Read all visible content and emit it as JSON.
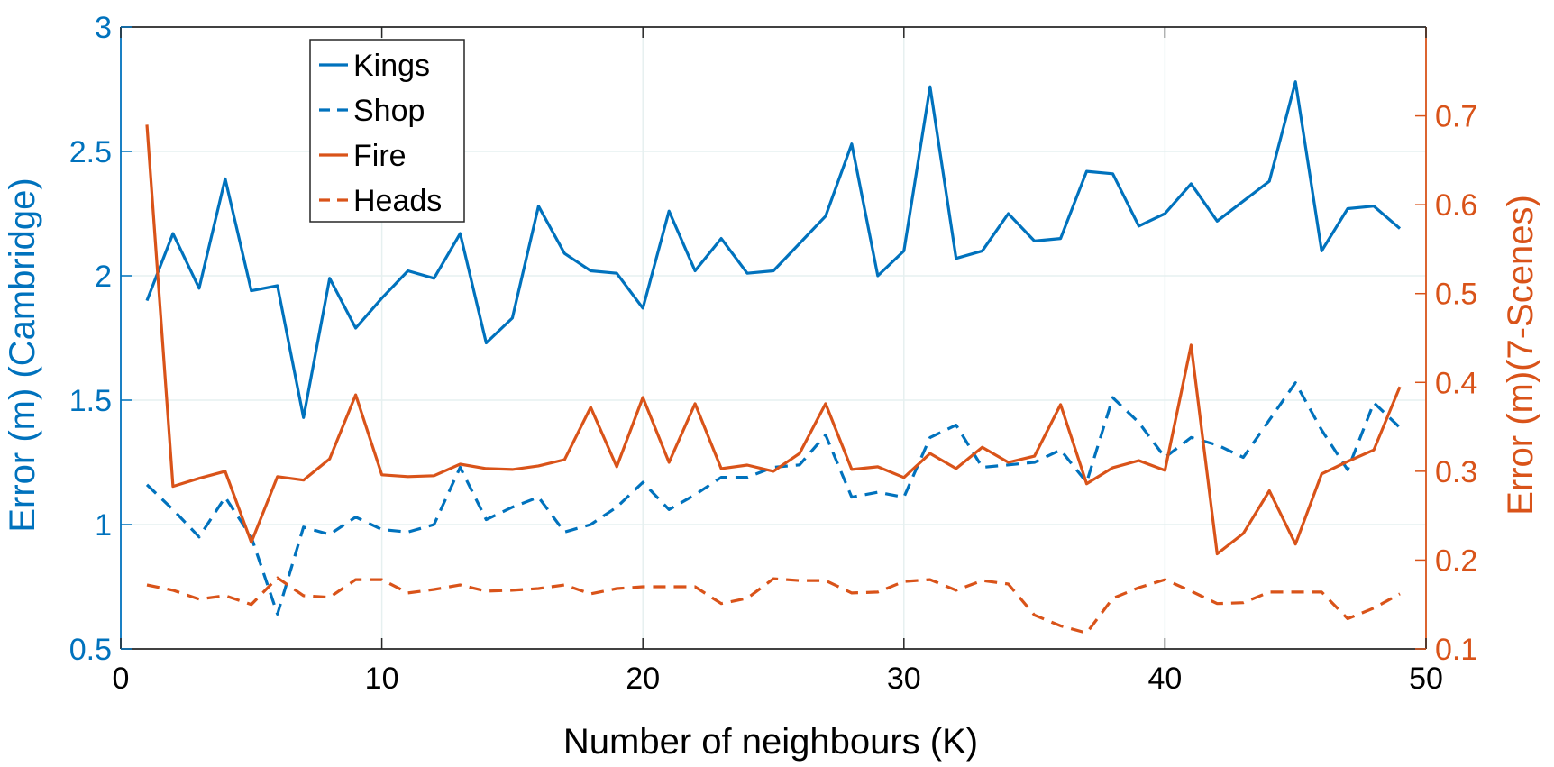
{
  "colors": {
    "left_axis": "#0072BD",
    "right_axis": "#D95319",
    "grid": "#E6F0F0",
    "frame": "#262626"
  },
  "chart_data": {
    "type": "line",
    "xlabel": "Number of neighbours (K)",
    "ylabel_left": "Error (m) (Cambridge)",
    "ylabel_right": "Error (m)(7-Scenes)",
    "xlim": [
      0,
      50
    ],
    "ylim_left": [
      0.5,
      3
    ],
    "ylim_right": [
      0.1,
      0.8
    ],
    "grid": true,
    "legend_location": "top-left",
    "x_ticks": [
      0,
      10,
      20,
      30,
      40,
      50
    ],
    "x_tick_labels": [
      "0",
      "10",
      "20",
      "30",
      "40",
      "50"
    ],
    "y_left_ticks": [
      0.5,
      1,
      1.5,
      2,
      2.5,
      3
    ],
    "y_left_tick_labels": [
      "0.5",
      "1",
      "1.5",
      "2",
      "2.5",
      "3"
    ],
    "y_right_ticks": [
      0.1,
      0.2,
      0.3,
      0.4,
      0.5,
      0.6,
      0.7
    ],
    "y_right_tick_labels": [
      "0.1",
      "0.2",
      "0.3",
      "0.4",
      "0.5",
      "0.6",
      "0.7"
    ],
    "x": [
      1,
      2,
      3,
      4,
      5,
      6,
      7,
      8,
      9,
      10,
      11,
      12,
      13,
      14,
      15,
      16,
      17,
      18,
      19,
      20,
      21,
      22,
      23,
      24,
      25,
      26,
      27,
      28,
      29,
      30,
      31,
      32,
      33,
      34,
      35,
      36,
      37,
      38,
      39,
      40,
      41,
      42,
      43,
      44,
      45,
      46,
      47,
      48,
      49
    ],
    "series": [
      {
        "name": "Kings",
        "axis": "left",
        "style": "solid",
        "color": "#0072BD",
        "values": [
          1.9,
          2.17,
          1.95,
          2.39,
          1.94,
          1.96,
          1.43,
          1.99,
          1.79,
          1.91,
          2.02,
          1.99,
          2.17,
          1.73,
          1.83,
          2.28,
          2.09,
          2.02,
          2.01,
          1.87,
          2.26,
          2.02,
          2.15,
          2.01,
          2.02,
          2.13,
          2.24,
          2.53,
          2.0,
          2.1,
          2.76,
          2.07,
          2.1,
          2.25,
          2.14,
          2.15,
          2.42,
          2.41,
          2.2,
          2.25,
          2.37,
          2.22,
          2.3,
          2.38,
          2.78,
          2.1,
          2.27,
          2.28,
          2.19
        ]
      },
      {
        "name": "Shop",
        "axis": "left",
        "style": "dashed",
        "color": "#0072BD",
        "values": [
          1.16,
          1.06,
          0.95,
          1.11,
          0.95,
          0.64,
          0.99,
          0.96,
          1.03,
          0.98,
          0.97,
          1.0,
          1.23,
          1.02,
          1.07,
          1.11,
          0.97,
          1.0,
          1.07,
          1.17,
          1.06,
          1.12,
          1.19,
          1.19,
          1.23,
          1.24,
          1.36,
          1.11,
          1.13,
          1.11,
          1.35,
          1.4,
          1.23,
          1.24,
          1.25,
          1.3,
          1.17,
          1.51,
          1.41,
          1.27,
          1.35,
          1.32,
          1.27,
          1.42,
          1.57,
          1.38,
          1.22,
          1.49,
          1.39
        ]
      },
      {
        "name": "Fire",
        "axis": "right",
        "style": "solid",
        "color": "#D95319",
        "values": [
          0.69,
          0.283,
          0.292,
          0.3,
          0.22,
          0.294,
          0.29,
          0.314,
          0.386,
          0.296,
          0.294,
          0.295,
          0.308,
          0.303,
          0.302,
          0.306,
          0.313,
          0.372,
          0.305,
          0.383,
          0.31,
          0.376,
          0.303,
          0.307,
          0.3,
          0.32,
          0.376,
          0.302,
          0.305,
          0.293,
          0.32,
          0.303,
          0.327,
          0.31,
          0.317,
          0.375,
          0.286,
          0.304,
          0.312,
          0.301,
          0.442,
          0.207,
          0.23,
          0.278,
          0.218,
          0.297,
          0.311,
          0.324,
          0.395
        ]
      },
      {
        "name": "Heads",
        "axis": "right",
        "style": "dashed",
        "color": "#D95319",
        "values": [
          0.172,
          0.166,
          0.156,
          0.16,
          0.15,
          0.18,
          0.16,
          0.158,
          0.178,
          0.178,
          0.163,
          0.167,
          0.172,
          0.165,
          0.166,
          0.168,
          0.172,
          0.162,
          0.168,
          0.17,
          0.17,
          0.17,
          0.151,
          0.157,
          0.179,
          0.177,
          0.177,
          0.163,
          0.164,
          0.176,
          0.178,
          0.166,
          0.177,
          0.173,
          0.138,
          0.126,
          0.118,
          0.157,
          0.169,
          0.178,
          0.165,
          0.151,
          0.152,
          0.164,
          0.164,
          0.164,
          0.134,
          0.146,
          0.162
        ]
      }
    ]
  }
}
